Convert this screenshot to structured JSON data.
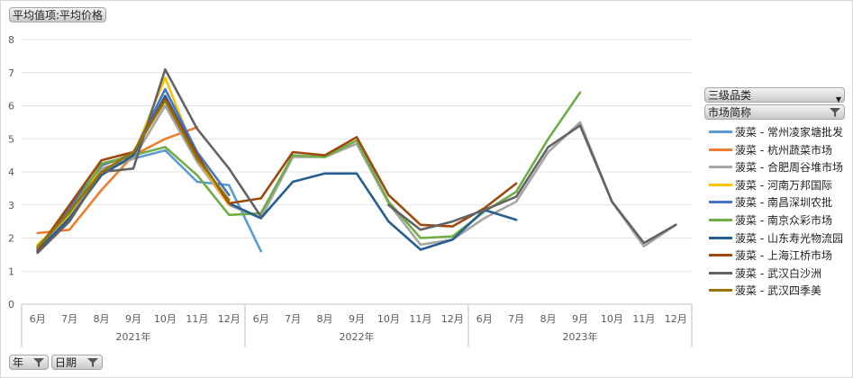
{
  "header": {
    "value_field_label": "平均值项:平均价格"
  },
  "filters": {
    "level3_label": "三级品类",
    "market_label": "市场简称",
    "year_label": "年",
    "date_label": "日期"
  },
  "chart_data": {
    "type": "line",
    "title": "",
    "xlabel": "",
    "ylabel": "",
    "ylim": [
      0,
      8
    ],
    "yticks": [
      0,
      1,
      2,
      3,
      4,
      5,
      6,
      7,
      8
    ],
    "grid": true,
    "legend_position": "right",
    "groups": [
      {
        "label": "2021年",
        "months": [
          "6月",
          "7月",
          "8月",
          "9月",
          "10月",
          "11月",
          "12月"
        ]
      },
      {
        "label": "2022年",
        "months": [
          "6月",
          "7月",
          "8月",
          "9月",
          "10月",
          "11月",
          "12月"
        ]
      },
      {
        "label": "2023年",
        "months": [
          "6月",
          "7月",
          "8月",
          "9月",
          "10月",
          "11月",
          "12月"
        ]
      }
    ],
    "series": [
      {
        "name": "菠菜 - 常州凌家塘批发",
        "color": "#5b9bd5",
        "values": [
          1.7,
          2.7,
          4.0,
          4.4,
          4.65,
          3.7,
          3.6,
          1.6,
          null,
          null,
          null,
          null,
          null,
          null,
          null,
          null,
          null,
          null,
          null,
          null,
          null
        ]
      },
      {
        "name": "菠菜 - 杭州蔬菜市场",
        "color": "#ed7d31",
        "values": [
          2.15,
          2.25,
          3.45,
          4.5,
          5.0,
          5.35,
          null,
          null,
          null,
          null,
          null,
          null,
          null,
          null,
          null,
          null,
          null,
          null,
          null,
          null,
          null
        ]
      },
      {
        "name": "菠菜 - 合肥周谷堆市场",
        "color": "#a5a5a5",
        "values": [
          1.7,
          2.6,
          4.1,
          4.4,
          6.0,
          4.3,
          3.0,
          2.6,
          4.45,
          4.45,
          4.85,
          3.05,
          1.8,
          1.95,
          2.6,
          3.1,
          4.6,
          5.5,
          3.1,
          1.75,
          2.4
        ]
      },
      {
        "name": "菠菜 - 河南万邦国际",
        "color": "#ffc000",
        "values": [
          1.8,
          2.7,
          4.2,
          4.5,
          6.85,
          4.4,
          3.0,
          null,
          null,
          null,
          null,
          null,
          null,
          null,
          null,
          null,
          null,
          null,
          null,
          null,
          null
        ]
      },
      {
        "name": "菠菜 - 南昌深圳农批",
        "color": "#4472c4",
        "values": [
          1.6,
          2.9,
          4.2,
          4.55,
          6.5,
          4.6,
          3.3,
          null,
          null,
          null,
          null,
          null,
          null,
          null,
          null,
          null,
          null,
          null,
          null,
          null,
          null
        ]
      },
      {
        "name": "菠菜 - 南京众彩市场",
        "color": "#70ad47",
        "values": [
          1.75,
          2.75,
          4.25,
          4.5,
          4.75,
          3.9,
          2.7,
          2.75,
          4.5,
          4.45,
          4.95,
          3.1,
          2.0,
          2.05,
          2.8,
          3.4,
          5.0,
          6.4,
          null,
          null,
          null
        ]
      },
      {
        "name": "菠菜 - 山东寿光物流园",
        "color": "#255e91",
        "values": [
          1.6,
          2.6,
          3.9,
          4.5,
          6.3,
          4.5,
          3.05,
          2.6,
          3.7,
          3.95,
          3.95,
          2.5,
          1.65,
          1.95,
          2.85,
          2.55,
          null,
          null,
          null,
          null,
          null
        ]
      },
      {
        "name": "菠菜 - 上海江桥市场",
        "color": "#9e480e",
        "values": [
          1.65,
          3.0,
          4.35,
          4.6,
          6.2,
          4.5,
          3.05,
          3.2,
          4.6,
          4.5,
          5.05,
          3.3,
          2.4,
          2.35,
          2.9,
          3.65,
          null,
          null,
          null,
          null,
          null
        ]
      },
      {
        "name": "菠菜 - 武汉白沙洲",
        "color": "#636363",
        "values": [
          1.55,
          2.5,
          4.0,
          4.1,
          7.1,
          5.3,
          4.1,
          2.65,
          null,
          null,
          null,
          3.0,
          2.25,
          2.5,
          2.85,
          3.25,
          4.75,
          5.4,
          3.1,
          1.85,
          2.4
        ]
      },
      {
        "name": "菠菜 - 武汉四季美",
        "color": "#997300",
        "values": [
          1.7,
          2.8,
          4.0,
          4.6,
          6.15,
          4.4,
          3.15,
          null,
          null,
          null,
          null,
          null,
          null,
          null,
          null,
          null,
          null,
          null,
          null,
          null,
          null
        ]
      }
    ]
  }
}
